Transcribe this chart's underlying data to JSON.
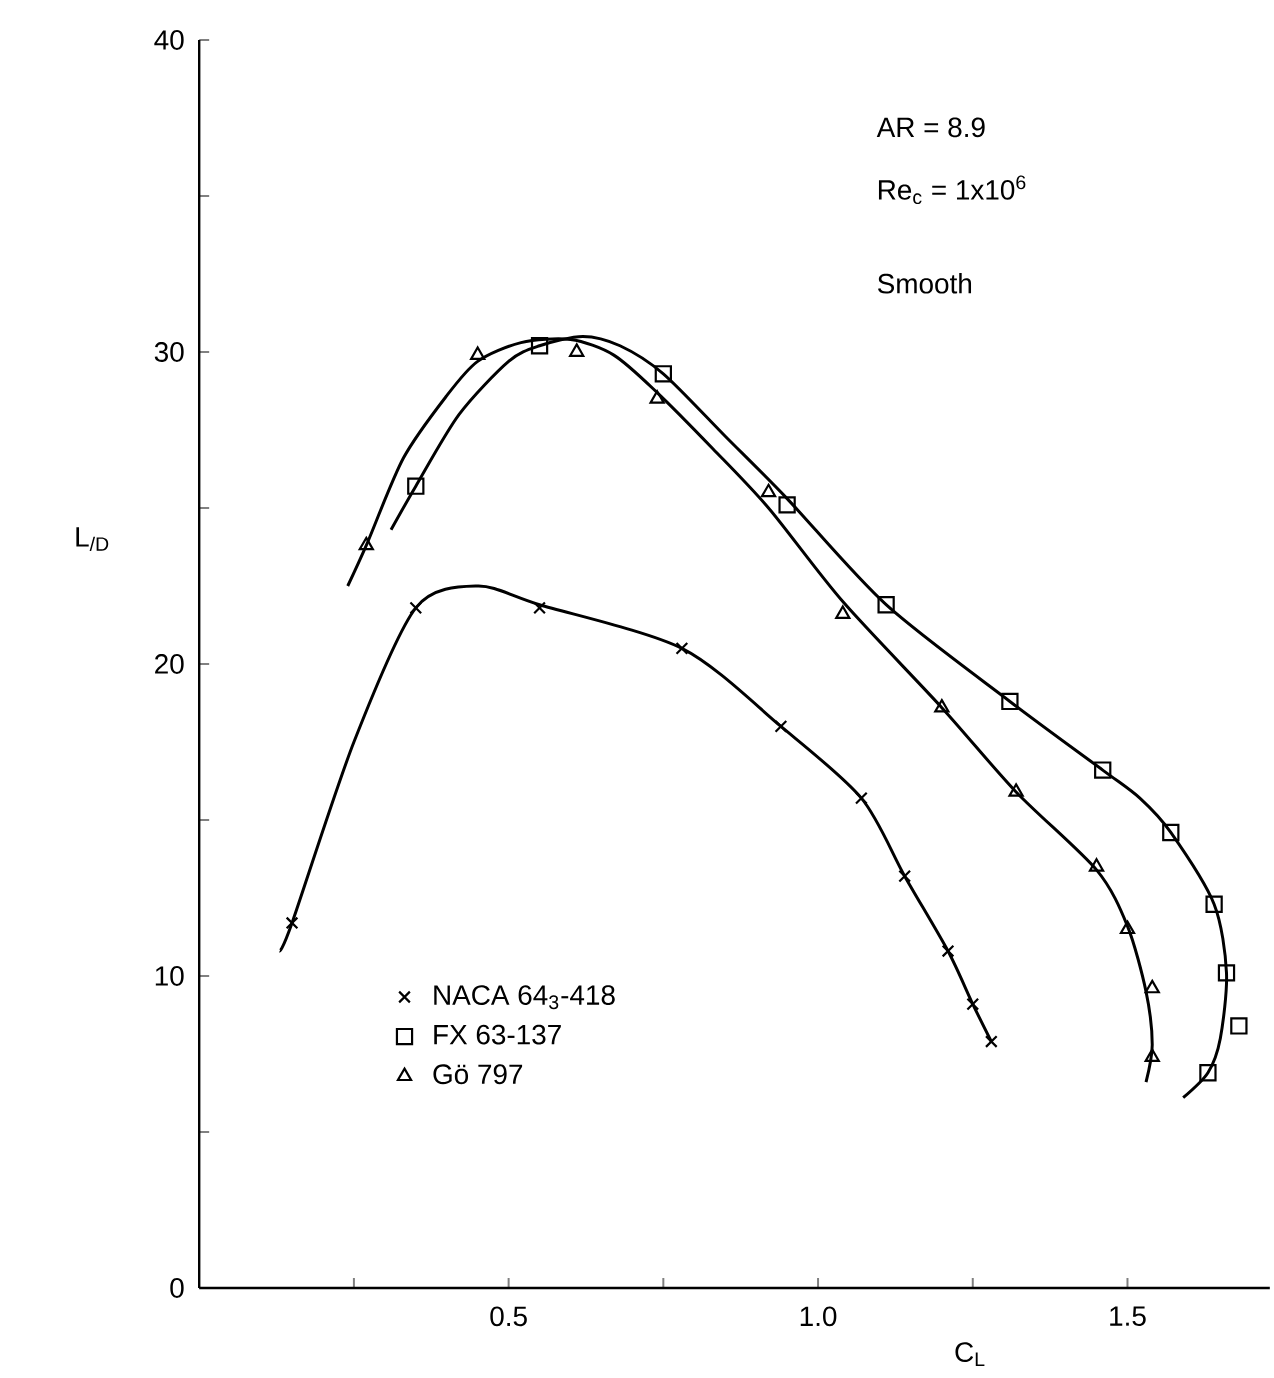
{
  "chart_data": {
    "type": "scatter",
    "xlabel": "C$_{L}$",
    "ylabel": "L$_{/D}$",
    "xlim": [
      0,
      1.73
    ],
    "ylim": [
      0,
      40
    ],
    "xticks": [
      {
        "value": 0.25,
        "label": null
      },
      0.5,
      {
        "value": 0.75,
        "label": null
      },
      {
        "value": 1.0,
        "label": "1.0"
      },
      {
        "value": 1.25,
        "label": null
      },
      1.5
    ],
    "yticks": [
      0,
      {
        "value": 5,
        "label": null
      },
      10,
      {
        "value": 15,
        "label": null
      },
      20,
      {
        "value": 25,
        "label": null
      },
      30,
      {
        "value": 35,
        "label": null
      },
      40
    ],
    "legend": "bottom left",
    "annotations": [
      "AR = 8.9",
      "Re$_{c}$ = 1x10$^{6}$",
      "Smooth"
    ],
    "series": [
      {
        "name": "NACA 64$_{3}$-418",
        "marker": "cross",
        "color": "#000000",
        "x": [
          0.15,
          0.35,
          0.55,
          0.78,
          0.94,
          1.07,
          1.14,
          1.21,
          1.25,
          1.28
        ],
        "values": [
          11.7,
          21.8,
          21.8,
          20.5,
          18.0,
          15.7,
          13.2,
          10.8,
          9.1,
          7.9
        ]
      },
      {
        "name": "FX 63-137",
        "marker": "square",
        "color": "#000000",
        "x": [
          0.35,
          0.55,
          0.75,
          0.95,
          1.11,
          1.31,
          1.46,
          1.57,
          1.64,
          1.66,
          1.68,
          1.63
        ],
        "values": [
          25.7,
          30.2,
          29.3,
          25.1,
          21.9,
          18.8,
          16.6,
          14.6,
          12.3,
          10.1,
          8.4,
          6.9
        ]
      },
      {
        "name": "Gö 797",
        "marker": "triangle",
        "color": "#000000",
        "x": [
          0.27,
          0.45,
          0.61,
          0.74,
          0.92,
          1.04,
          1.2,
          1.32,
          1.45,
          1.5,
          1.54,
          1.54
        ],
        "values": [
          23.8,
          29.9,
          30.0,
          28.5,
          25.5,
          21.6,
          18.6,
          15.9,
          13.5,
          11.5,
          9.6,
          7.4
        ]
      },
      {
        "type": "line",
        "marker": "none",
        "color": "#000000",
        "x": [
          0.13,
          0.15,
          0.25,
          0.35,
          0.45,
          0.55,
          0.78,
          0.94,
          1.07,
          1.14,
          1.21,
          1.25,
          1.28
        ],
        "values": [
          10.8,
          11.7,
          17.5,
          21.8,
          22.5,
          21.9,
          20.5,
          18.0,
          15.7,
          13.2,
          10.8,
          9.1,
          7.9
        ]
      },
      {
        "type": "line",
        "marker": "none",
        "color": "#000000",
        "x": [
          0.31,
          0.35,
          0.42,
          0.5,
          0.55,
          0.62,
          0.68,
          0.75,
          0.85,
          0.95,
          1.11,
          1.31,
          1.46,
          1.52,
          1.57,
          1.64,
          1.66,
          1.65,
          1.63,
          1.59
        ],
        "values": [
          24.3,
          25.7,
          28.0,
          29.7,
          30.2,
          30.5,
          30.2,
          29.3,
          27.3,
          25.3,
          21.9,
          18.8,
          16.6,
          15.7,
          14.6,
          12.3,
          10.1,
          8.0,
          6.9,
          6.1
        ]
      },
      {
        "type": "line",
        "marker": "none",
        "color": "#000000",
        "x": [
          0.24,
          0.27,
          0.33,
          0.4,
          0.45,
          0.52,
          0.6,
          0.67,
          0.74,
          0.83,
          0.92,
          1.04,
          1.2,
          1.32,
          1.45,
          1.5,
          1.53,
          1.54,
          1.53
        ],
        "values": [
          22.5,
          23.8,
          26.6,
          28.6,
          29.7,
          30.3,
          30.4,
          29.9,
          28.7,
          26.9,
          25.0,
          22.0,
          18.6,
          15.9,
          13.4,
          11.6,
          9.5,
          7.8,
          6.6
        ]
      }
    ]
  }
}
